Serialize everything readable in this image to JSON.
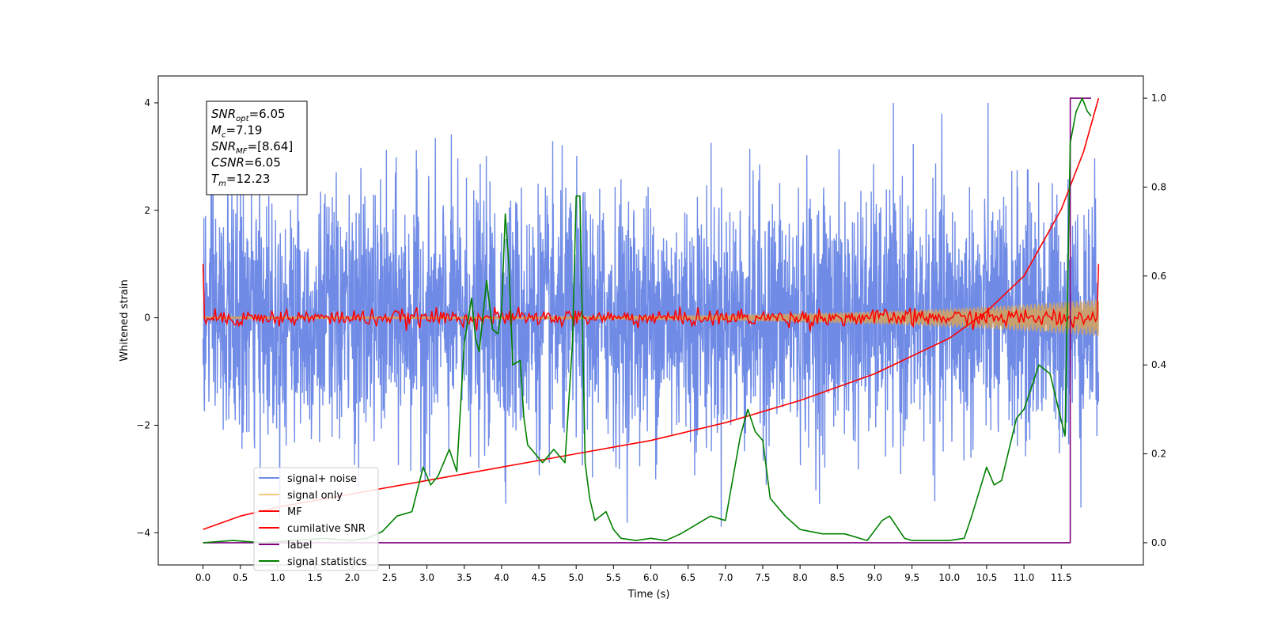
{
  "chart_data": {
    "type": "line",
    "xlabel": "Time (s)",
    "ylabel": "Whitened strain",
    "xlim": [
      -0.6,
      12.6
    ],
    "ylim": [
      -4.6,
      4.5
    ],
    "y2lim": [
      -0.05,
      1.05
    ],
    "x_ticks": [
      "0.0",
      "0.5",
      "1.0",
      "1.5",
      "2.0",
      "2.5",
      "3.0",
      "3.5",
      "4.0",
      "4.5",
      "5.0",
      "5.5",
      "6.0",
      "6.5",
      "7.0",
      "7.5",
      "8.0",
      "8.5",
      "9.0",
      "9.5",
      "10.0",
      "10.5",
      "11.0",
      "11.5"
    ],
    "y_ticks": [
      "4",
      "2",
      "0",
      "−2",
      "−4"
    ],
    "y2_ticks": [
      "1.0",
      "0.8",
      "0.6",
      "0.4",
      "0.2",
      "0.0"
    ],
    "annotation": {
      "lines": [
        {
          "sym": "SNR",
          "sub": "opt",
          "val": "=6.05"
        },
        {
          "sym": "M",
          "sub": "c",
          "val": "=7.19"
        },
        {
          "sym": "SNR",
          "sub": "MF",
          "val": "=[8.64]"
        },
        {
          "sym": "CSNR",
          "sub": "",
          "val": "=6.05"
        },
        {
          "sym": "T",
          "sub": "m",
          "val": "=12.23"
        }
      ]
    },
    "legend": {
      "location": "lower-left",
      "entries": [
        {
          "label": "signal+ noise",
          "color": "#6f8be6"
        },
        {
          "label": "signal only",
          "color": "#f5c77e"
        },
        {
          "label": "MF",
          "color": "#ff0000"
        },
        {
          "label": "cumilative SNR",
          "color": "#ff0000"
        },
        {
          "label": "label",
          "color": "#800080"
        },
        {
          "label": "signal statistics",
          "color": "#008000"
        }
      ]
    },
    "series": [
      {
        "name": "signal+ noise",
        "axis": "left",
        "color": "#6f8be6",
        "note_shape": "dense noise, std ~1.0, spikes to ~±4",
        "x_range": [
          0.0,
          12.0
        ],
        "envelope_max": 4.0,
        "envelope_min": -4.1
      },
      {
        "name": "signal only",
        "axis": "left",
        "color": "#f5c77e",
        "x_range": [
          0.0,
          12.0
        ],
        "amplitude_start": 0.02,
        "amplitude_end": 0.35
      },
      {
        "name": "MF",
        "axis": "left",
        "color": "#ff0000",
        "x_range": [
          0.0,
          12.0
        ],
        "level": 0.0,
        "noise_std": 0.08,
        "edge_value": 1.0
      },
      {
        "name": "cumilative SNR",
        "axis": "right",
        "color": "#ff0000",
        "x": [
          0.0,
          0.5,
          1.0,
          2.0,
          3.0,
          4.0,
          5.0,
          6.0,
          7.0,
          8.0,
          9.0,
          10.0,
          10.5,
          11.0,
          11.5,
          11.8,
          12.0
        ],
        "values": [
          0.03,
          0.06,
          0.08,
          0.11,
          0.14,
          0.17,
          0.2,
          0.23,
          0.27,
          0.32,
          0.38,
          0.46,
          0.52,
          0.6,
          0.75,
          0.88,
          1.0
        ]
      },
      {
        "name": "label",
        "axis": "right",
        "color": "#800080",
        "x": [
          0.0,
          11.62,
          11.62,
          11.9
        ],
        "values": [
          0.0,
          0.0,
          1.0,
          1.0
        ]
      },
      {
        "name": "signal statistics",
        "axis": "right",
        "color": "#008000",
        "x": [
          0.0,
          0.4,
          0.8,
          1.2,
          1.6,
          2.0,
          2.2,
          2.4,
          2.6,
          2.8,
          2.95,
          3.05,
          3.15,
          3.3,
          3.4,
          3.5,
          3.6,
          3.65,
          3.7,
          3.8,
          3.88,
          3.95,
          4.0,
          4.05,
          4.1,
          4.15,
          4.25,
          4.3,
          4.35,
          4.45,
          4.55,
          4.7,
          4.85,
          4.95,
          5.0,
          5.05,
          5.12,
          5.18,
          5.25,
          5.4,
          5.5,
          5.6,
          5.8,
          6.0,
          6.2,
          6.4,
          6.6,
          6.8,
          7.0,
          7.2,
          7.3,
          7.4,
          7.5,
          7.6,
          7.8,
          8.0,
          8.3,
          8.6,
          8.9,
          9.1,
          9.2,
          9.4,
          9.5,
          9.7,
          10.0,
          10.2,
          10.3,
          10.5,
          10.6,
          10.7,
          10.9,
          11.0,
          11.2,
          11.35,
          11.45,
          11.55,
          11.62,
          11.7,
          11.78,
          11.85,
          11.9
        ],
        "values": [
          0.0,
          0.005,
          0.0,
          0.005,
          0.01,
          0.005,
          0.01,
          0.025,
          0.06,
          0.07,
          0.17,
          0.13,
          0.15,
          0.21,
          0.16,
          0.45,
          0.55,
          0.46,
          0.43,
          0.59,
          0.48,
          0.47,
          0.52,
          0.74,
          0.62,
          0.4,
          0.41,
          0.28,
          0.22,
          0.2,
          0.18,
          0.21,
          0.18,
          0.45,
          0.78,
          0.78,
          0.18,
          0.1,
          0.05,
          0.07,
          0.03,
          0.01,
          0.005,
          0.01,
          0.005,
          0.02,
          0.04,
          0.06,
          0.05,
          0.24,
          0.3,
          0.25,
          0.23,
          0.1,
          0.06,
          0.03,
          0.02,
          0.02,
          0.005,
          0.05,
          0.06,
          0.01,
          0.005,
          0.005,
          0.005,
          0.01,
          0.06,
          0.17,
          0.13,
          0.14,
          0.28,
          0.3,
          0.4,
          0.38,
          0.31,
          0.24,
          0.9,
          0.97,
          1.0,
          0.97,
          0.96
        ]
      }
    ]
  }
}
